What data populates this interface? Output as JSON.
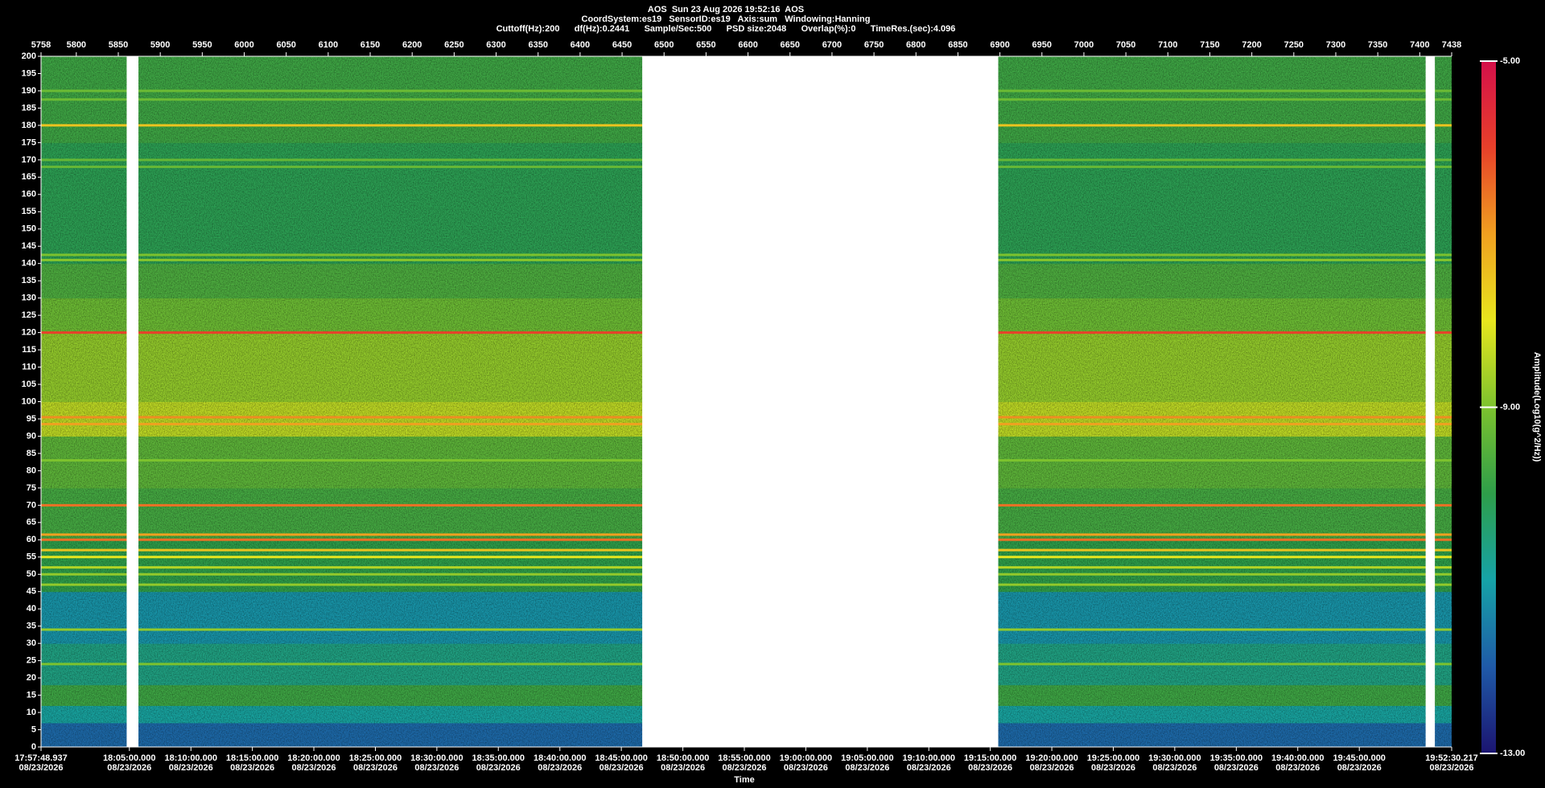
{
  "chart_data": {
    "type": "spectrogram",
    "title": "AOS  Sun 23 Aug 2026 19:52:16  AOS",
    "subtitles": [
      "CoordSystem:es19   SensorID:es19   Axis:sum   Windowing:Hanning",
      "Cuttoff(Hz):200      df(Hz):0.2441      Sample/Sec:500      PSD size:2048      Overlap(%):0      TimeRes.(sec):4.096"
    ],
    "xlabel": "Time",
    "colorbar_label": "Amplitude(Log10(g^2/Hz))",
    "xlim": [
      5758,
      7438
    ],
    "xticks": [
      5758,
      5800,
      5850,
      5900,
      5950,
      6000,
      6050,
      6100,
      6150,
      6200,
      6250,
      6300,
      6350,
      6400,
      6450,
      6500,
      6550,
      6600,
      6650,
      6700,
      6750,
      6800,
      6850,
      6900,
      6950,
      7000,
      7050,
      7100,
      7150,
      7200,
      7250,
      7300,
      7350,
      7400,
      7438
    ],
    "time_ticks": [
      {
        "value": 5758,
        "label": "17:57:48.937",
        "date": "08/23/2026"
      },
      {
        "value": 5863.2,
        "label": "18:05:00.000",
        "date": "08/23/2026"
      },
      {
        "value": 5936.5,
        "label": "18:10:00.000",
        "date": "08/23/2026"
      },
      {
        "value": 6009.7,
        "label": "18:15:00.000",
        "date": "08/23/2026"
      },
      {
        "value": 6082.9,
        "label": "18:20:00.000",
        "date": "08/23/2026"
      },
      {
        "value": 6156.2,
        "label": "18:25:00.000",
        "date": "08/23/2026"
      },
      {
        "value": 6229.4,
        "label": "18:30:00.000",
        "date": "08/23/2026"
      },
      {
        "value": 6302.6,
        "label": "18:35:00.000",
        "date": "08/23/2026"
      },
      {
        "value": 6375.9,
        "label": "18:40:00.000",
        "date": "08/23/2026"
      },
      {
        "value": 6449.1,
        "label": "18:45:00.000",
        "date": "08/23/2026"
      },
      {
        "value": 6522.4,
        "label": "18:50:00.000",
        "date": "08/23/2026"
      },
      {
        "value": 6595.6,
        "label": "18:55:00.000",
        "date": "08/23/2026"
      },
      {
        "value": 6668.8,
        "label": "19:00:00.000",
        "date": "08/23/2026"
      },
      {
        "value": 6742.1,
        "label": "19:05:00.000",
        "date": "08/23/2026"
      },
      {
        "value": 6815.3,
        "label": "19:10:00.000",
        "date": "08/23/2026"
      },
      {
        "value": 6888.5,
        "label": "19:15:00.000",
        "date": "08/23/2026"
      },
      {
        "value": 6961.8,
        "label": "19:20:00.000",
        "date": "08/23/2026"
      },
      {
        "value": 7035.0,
        "label": "19:25:00.000",
        "date": "08/23/2026"
      },
      {
        "value": 7108.2,
        "label": "19:30:00.000",
        "date": "08/23/2026"
      },
      {
        "value": 7181.5,
        "label": "19:35:00.000",
        "date": "08/23/2026"
      },
      {
        "value": 7254.7,
        "label": "19:40:00.000",
        "date": "08/23/2026"
      },
      {
        "value": 7328.0,
        "label": "19:45:00.000",
        "date": "08/23/2026"
      },
      {
        "value": 7438,
        "label": "19:52:30.217",
        "date": "08/23/2026"
      }
    ],
    "ylim": [
      0,
      200
    ],
    "yticks": [
      0,
      5,
      10,
      15,
      20,
      25,
      30,
      35,
      40,
      45,
      50,
      55,
      60,
      65,
      70,
      75,
      80,
      85,
      90,
      95,
      100,
      105,
      110,
      115,
      120,
      125,
      130,
      135,
      140,
      145,
      150,
      155,
      160,
      165,
      170,
      175,
      180,
      185,
      190,
      195,
      200
    ],
    "clim": [
      -13,
      -5
    ],
    "cticks": [
      {
        "value": -13,
        "label": "-13.00"
      },
      {
        "value": -9,
        "label": "-9.00"
      },
      {
        "value": -5,
        "label": "-5.00"
      }
    ],
    "colormap": [
      "#1b1470",
      "#1f5aa8",
      "#16a3a8",
      "#2e9e4a",
      "#7cc22e",
      "#e8e61e",
      "#f0a020",
      "#e8402a",
      "#d4104a"
    ],
    "bands": [
      {
        "from": 0,
        "to": 7,
        "level": -11.8
      },
      {
        "from": 7,
        "to": 12,
        "level": -10.9
      },
      {
        "from": 12,
        "to": 18,
        "level": -9.8
      },
      {
        "from": 18,
        "to": 30,
        "level": -10.6
      },
      {
        "from": 30,
        "to": 45,
        "level": -11.2
      },
      {
        "from": 45,
        "to": 60,
        "level": -10.0
      },
      {
        "from": 60,
        "to": 75,
        "level": -9.7
      },
      {
        "from": 75,
        "to": 90,
        "level": -9.4
      },
      {
        "from": 90,
        "to": 100,
        "level": -8.4
      },
      {
        "from": 100,
        "to": 120,
        "level": -8.8
      },
      {
        "from": 120,
        "to": 130,
        "level": -9.2
      },
      {
        "from": 130,
        "to": 140,
        "level": -9.6
      },
      {
        "from": 140,
        "to": 175,
        "level": -10.1
      },
      {
        "from": 175,
        "to": 200,
        "level": -9.8
      }
    ],
    "lines": [
      {
        "freq": 120,
        "level": -6.0
      },
      {
        "freq": 70,
        "level": -6.5
      },
      {
        "freq": 95.5,
        "level": -6.8
      },
      {
        "freq": 93.5,
        "level": -7.0
      },
      {
        "freq": 60,
        "level": -6.5
      },
      {
        "freq": 61.5,
        "level": -7.0
      },
      {
        "freq": 57,
        "level": -7.5
      },
      {
        "freq": 55,
        "level": -8.0
      },
      {
        "freq": 52,
        "level": -8.5
      },
      {
        "freq": 50,
        "level": -8.8
      },
      {
        "freq": 47,
        "level": -8.8
      },
      {
        "freq": 180,
        "level": -7.5
      },
      {
        "freq": 34,
        "level": -8.8
      },
      {
        "freq": 24,
        "level": -9.0
      },
      {
        "freq": 141,
        "level": -8.9
      },
      {
        "freq": 142.5,
        "level": -9.0
      },
      {
        "freq": 187.5,
        "level": -9.2
      },
      {
        "freq": 190,
        "level": -9.2
      },
      {
        "freq": 170,
        "level": -9.3
      },
      {
        "freq": 168,
        "level": -9.3
      },
      {
        "freq": 83,
        "level": -9.0
      }
    ],
    "gaps": [
      [
        5860,
        5874
      ],
      [
        6474,
        6898
      ],
      [
        7407,
        7418
      ]
    ]
  }
}
